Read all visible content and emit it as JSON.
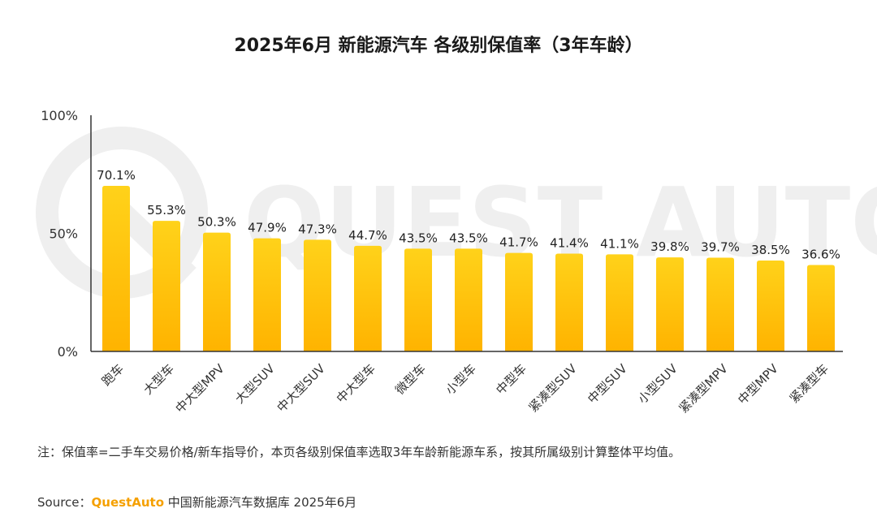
{
  "note": "注：保值率=二手车交易价格/新车指导价，本页各级别保值率选取3年车龄新能源车系，按其所属级别计算整体平均值。",
  "source": {
    "prefix": "Source：",
    "brand": "QuestAuto",
    "text": " 中国新能源汽车数据库 2025年6月"
  },
  "watermark": "QUEST AUTO",
  "colors": {
    "bar_top": "#ffd21a",
    "bar_bottom": "#ffb300",
    "axis": "#333333",
    "watermark": "#efefef"
  },
  "chart_data": {
    "type": "bar",
    "title": "2025年6月 新能源汽车 各级别保值率（3年车龄）",
    "categories": [
      "跑车",
      "大型车",
      "中大型MPV",
      "大型SUV",
      "中大型SUV",
      "中大型车",
      "微型车",
      "小型车",
      "中型车",
      "紧凑型SUV",
      "中型SUV",
      "小型SUV",
      "紧凑型MPV",
      "中型MPV",
      "紧凑型车"
    ],
    "values": [
      70.1,
      55.3,
      50.3,
      47.9,
      47.3,
      44.7,
      43.5,
      43.5,
      41.7,
      41.4,
      41.1,
      39.8,
      39.7,
      38.5,
      36.6
    ],
    "value_labels": [
      "70.1%",
      "55.3%",
      "50.3%",
      "47.9%",
      "47.3%",
      "44.7%",
      "43.5%",
      "43.5%",
      "41.7%",
      "41.4%",
      "41.1%",
      "39.8%",
      "39.7%",
      "38.5%",
      "36.6%"
    ],
    "yticks": [
      "0%",
      "50%",
      "100%"
    ],
    "ytick_values": [
      0,
      50,
      100
    ],
    "ylim": [
      0,
      100
    ],
    "grid": false,
    "legend": "none"
  }
}
